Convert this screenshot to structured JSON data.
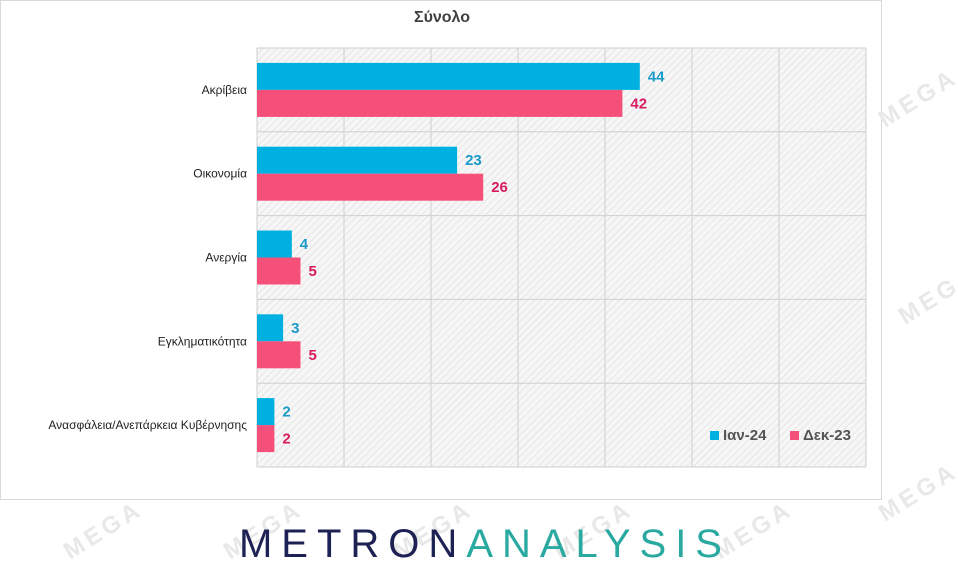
{
  "chart_data": {
    "type": "bar",
    "orientation": "horizontal",
    "title": "Σύνολο",
    "categories": [
      "Ακρίβεια",
      "Οικονομία",
      "Ανεργία",
      "Εγκληματικότητα",
      "Ανασφάλεια/Ανεπάρκεια Κυβέρνησης"
    ],
    "series": [
      {
        "name": "Ιαν-24",
        "color": "#00b0e0",
        "values": [
          44,
          23,
          4,
          3,
          2
        ]
      },
      {
        "name": "Δεκ-23",
        "color": "#f5507a",
        "values": [
          42,
          26,
          5,
          5,
          2
        ]
      }
    ],
    "xlim": [
      0,
      70
    ],
    "grid": true,
    "legend_position": "bottom-right",
    "data_labels": true
  },
  "logo": {
    "part1": "METRON",
    "part2": "ANALYSIS"
  },
  "watermark": "MEGA",
  "colors": {
    "label_series_0": "#1a9ac8",
    "label_series_1": "#d81b60",
    "logo_dark": "#1e2154",
    "logo_teal": "#2aa9a0"
  }
}
